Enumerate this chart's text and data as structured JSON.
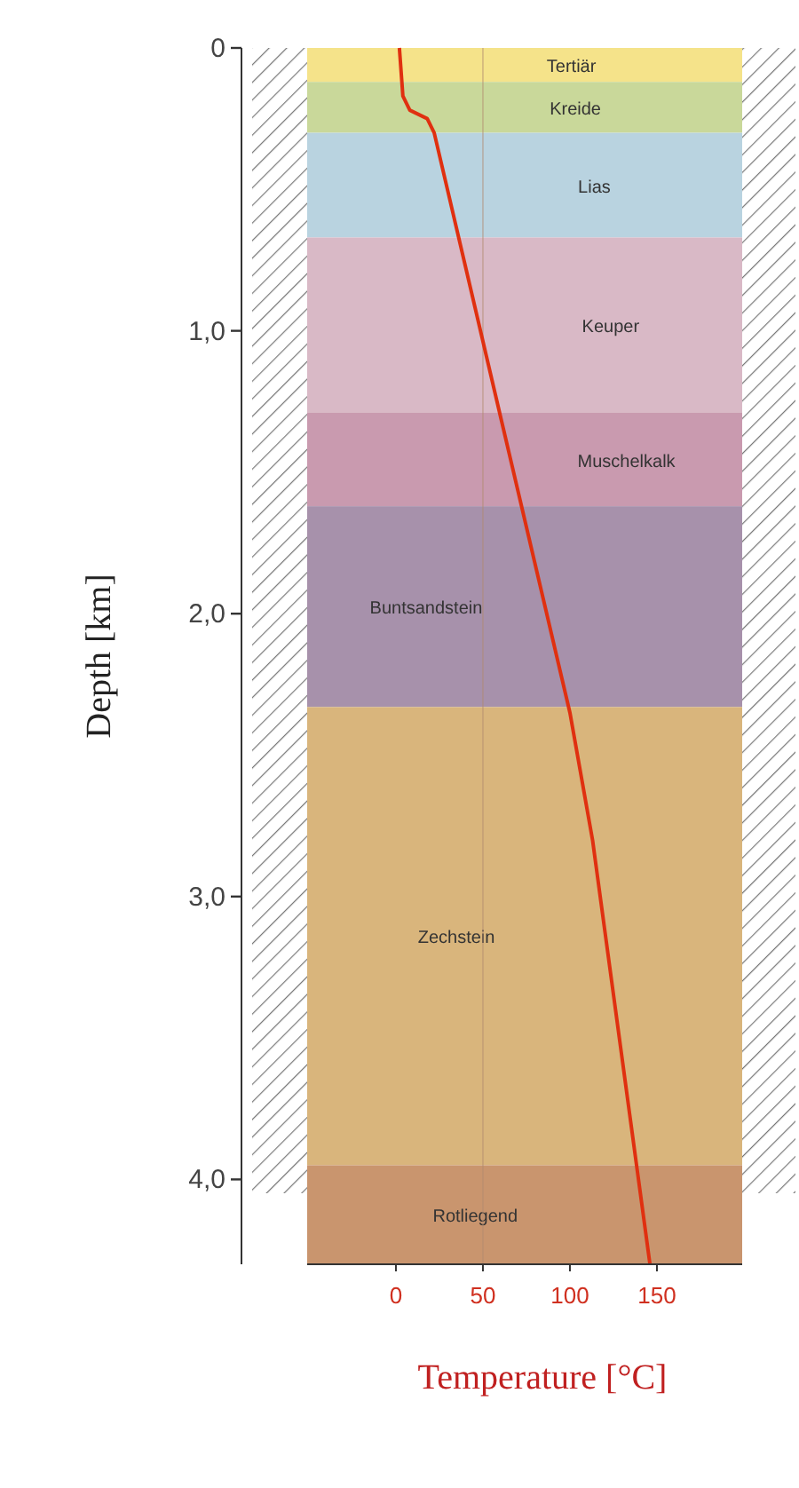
{
  "chart_data": {
    "type": "line",
    "xlabel": "Temperature [°C]",
    "ylabel": "Depth [km]",
    "xlim": [
      -51,
      199
    ],
    "ylim": [
      4.3,
      0
    ],
    "xticks": [
      0,
      50,
      100,
      150
    ],
    "yticks": [
      0,
      {
        "value": 1,
        "label": "1,0"
      },
      {
        "value": 2,
        "label": "2,0"
      },
      {
        "value": 3,
        "label": "3,0"
      },
      {
        "value": 4,
        "label": "4,0"
      }
    ],
    "series": [
      {
        "color": "#e03010",
        "x": [
          2,
          4,
          8,
          18,
          22,
          60,
          100,
          113,
          146
        ],
        "values": [
          0,
          0.17,
          0.22,
          0.25,
          0.3,
          1.3,
          2.35,
          2.8,
          4.3
        ]
      }
    ],
    "bands": [
      {
        "axis": "y",
        "from": 0,
        "to": 0.12,
        "label": "Tertiär",
        "color": "#f5e38a"
      },
      {
        "axis": "y",
        "from": 0.12,
        "to": 0.3,
        "label": "Kreide",
        "color": "#c9d89a"
      },
      {
        "axis": "y",
        "from": 0.3,
        "to": 0.67,
        "label": "Lias",
        "color": "#b9d3e0"
      },
      {
        "axis": "y",
        "from": 0.67,
        "to": 1.29,
        "label": "Keuper",
        "color": "#d9b9c6"
      },
      {
        "axis": "y",
        "from": 1.29,
        "to": 1.62,
        "label": "Muschelkalk",
        "color": "#c99aaf"
      },
      {
        "axis": "y",
        "from": 1.62,
        "to": 2.33,
        "label": "Buntsandstein",
        "color": "#a791ab"
      },
      {
        "axis": "y",
        "from": 2.33,
        "to": 3.95,
        "label": "Zechstein",
        "color": "#d9b57c"
      },
      {
        "axis": "y",
        "from": 3.95,
        "to": 4.3,
        "label": "Rotliegend",
        "color": "#c9956e"
      }
    ],
    "ref_lines": [
      {
        "axis": "x",
        "value": 50,
        "color": "#b08a70"
      }
    ],
    "grid": false,
    "line_style": "solid",
    "marker": "none"
  }
}
